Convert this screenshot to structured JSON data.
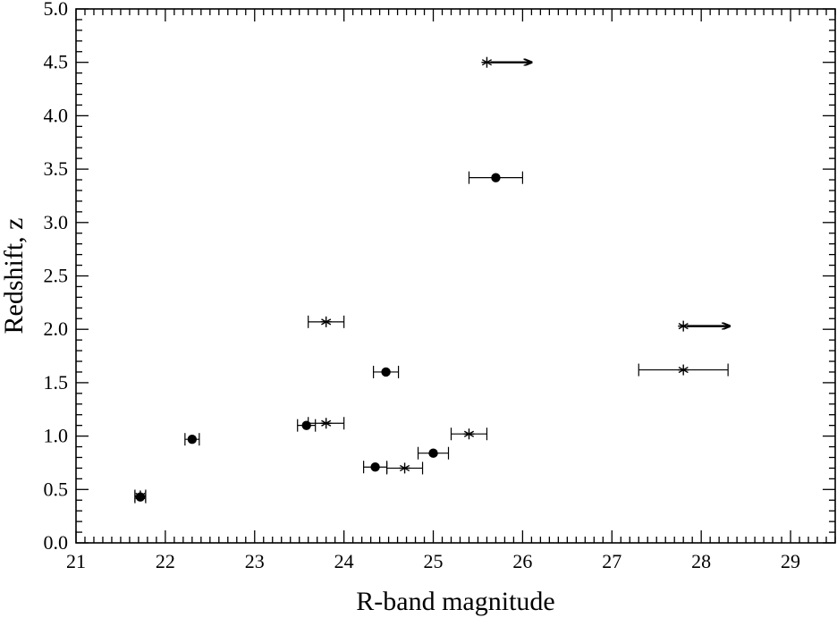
{
  "chart_data": {
    "type": "scatter",
    "title": "",
    "xlabel": "R-band magnitude",
    "ylabel": "Redshift, z",
    "xlim": [
      21,
      29.5
    ],
    "ylim": [
      0,
      5.0
    ],
    "grid": false,
    "x_ticks": [
      "21",
      "22",
      "23",
      "24",
      "25",
      "26",
      "27",
      "28",
      "29"
    ],
    "y_ticks": [
      "0.0",
      "0.5",
      "1.0",
      "1.5",
      "2.0",
      "2.5",
      "3.0",
      "3.5",
      "4.0",
      "4.5",
      "5.0"
    ],
    "series": [
      {
        "marker": "filled-circle",
        "points": [
          {
            "x": 21.72,
            "y": 0.43,
            "xerr": 0.06
          },
          {
            "x": 22.3,
            "y": 0.97,
            "xerr": 0.08
          },
          {
            "x": 23.58,
            "y": 1.1,
            "xerr": 0.1
          },
          {
            "x": 24.35,
            "y": 0.71,
            "xerr": 0.13
          },
          {
            "x": 24.47,
            "y": 1.6,
            "xerr": 0.14
          },
          {
            "x": 25.0,
            "y": 0.84,
            "xerr": 0.17
          },
          {
            "x": 25.7,
            "y": 3.42,
            "xerr": 0.3
          }
        ]
      },
      {
        "marker": "asterisk",
        "points": [
          {
            "x": 21.72,
            "y": 0.44,
            "xerr": 0.06
          },
          {
            "x": 23.8,
            "y": 2.07,
            "xerr": 0.2
          },
          {
            "x": 23.8,
            "y": 1.12,
            "xerr": 0.2
          },
          {
            "x": 24.68,
            "y": 0.7,
            "xerr": 0.2
          },
          {
            "x": 25.4,
            "y": 1.02,
            "xerr": 0.2
          },
          {
            "x": 27.8,
            "y": 1.62,
            "xerr": 0.5
          }
        ]
      },
      {
        "marker": "asterisk-lower-limit",
        "points": [
          {
            "x": 25.6,
            "y": 4.5,
            "arrow_to": 26.1
          },
          {
            "x": 27.8,
            "y": 2.03,
            "arrow_to": 28.32
          }
        ]
      }
    ]
  }
}
